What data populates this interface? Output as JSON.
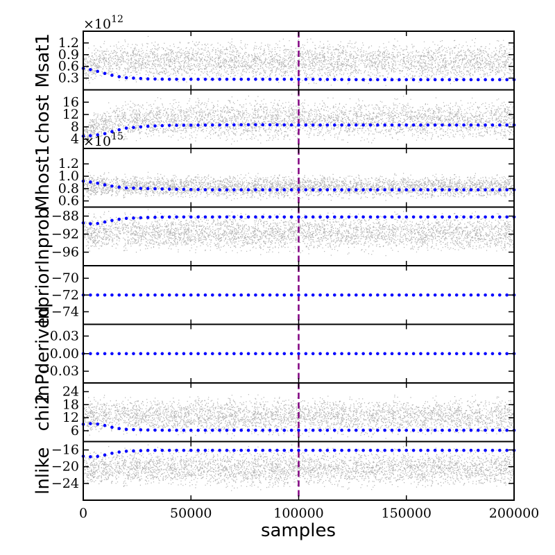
{
  "chart_data": {
    "type": "trace",
    "xlabel": "samples",
    "xlim": [
      0,
      200000
    ],
    "xticks": [
      0,
      50000,
      100000,
      150000,
      200000
    ],
    "xtick_labels": [
      "0",
      "50000",
      "100000",
      "150000",
      "200000"
    ],
    "burn_in_line": {
      "x": 100000,
      "color": "#800080",
      "style": "dashed"
    },
    "sample_color": "#b0b0b0",
    "mean_marker_color": "#0000ff",
    "panels": [
      {
        "ylabel": "Msat1",
        "multiplier_base": "×10",
        "multiplier_exp": "12",
        "ylim": [
          0,
          1.5
        ],
        "yticks": [
          0.3,
          0.6,
          0.9,
          1.2
        ],
        "ytick_labels": [
          "0.3",
          "0.6",
          "0.9",
          "1.2"
        ],
        "scatter_band": {
          "lo": [
            0.1,
            0.1,
            0.08,
            0.08,
            0.08
          ],
          "hi": [
            1.05,
            1.3,
            1.4,
            1.4,
            1.4
          ]
        },
        "mean_x": [
          0,
          5000,
          10000,
          15000,
          20000,
          30000,
          40000,
          60000,
          80000,
          100000,
          130000,
          160000,
          200000
        ],
        "mean_y": [
          0.55,
          0.5,
          0.42,
          0.35,
          0.31,
          0.28,
          0.27,
          0.27,
          0.27,
          0.27,
          0.26,
          0.26,
          0.26
        ]
      },
      {
        "ylabel": "chost",
        "ylim": [
          1,
          20
        ],
        "yticks": [
          4,
          8,
          12,
          16
        ],
        "ytick_labels": [
          "4",
          "8",
          "12",
          "16"
        ],
        "scatter_band": {
          "lo": [
            2,
            2,
            2,
            2,
            2
          ],
          "hi": [
            9,
            15,
            18,
            19,
            19
          ]
        },
        "mean_x": [
          0,
          5000,
          10000,
          15000,
          20000,
          30000,
          40000,
          60000,
          80000,
          100000,
          130000,
          160000,
          200000
        ],
        "mean_y": [
          5,
          5.2,
          5.8,
          6.8,
          7.6,
          8.2,
          8.5,
          8.6,
          8.7,
          8.6,
          8.6,
          8.6,
          8.6
        ]
      },
      {
        "ylabel": "Mhost1",
        "multiplier_base": "×10",
        "multiplier_exp": "15",
        "ylim": [
          0.5,
          1.45
        ],
        "yticks": [
          0.6,
          0.8,
          1.0,
          1.2
        ],
        "ytick_labels": [
          "0.6",
          "0.8",
          "1.0",
          "1.2"
        ],
        "scatter_band": {
          "lo": [
            0.6,
            0.6,
            0.6,
            0.6,
            0.6
          ],
          "hi": [
            1.1,
            1.1,
            1.08,
            1.08,
            1.08
          ]
        },
        "mean_x": [
          0,
          5000,
          10000,
          15000,
          20000,
          30000,
          40000,
          60000,
          80000,
          100000,
          130000,
          160000,
          200000
        ],
        "mean_y": [
          0.92,
          0.9,
          0.86,
          0.83,
          0.81,
          0.8,
          0.79,
          0.78,
          0.78,
          0.78,
          0.78,
          0.78,
          0.78
        ]
      },
      {
        "ylabel": "lnprob",
        "ylim": [
          -99,
          -86
        ],
        "yticks": [
          -96,
          -92,
          -88
        ],
        "ytick_labels": [
          "−96",
          "−92",
          "−88"
        ],
        "scatter_band": {
          "lo": [
            -96,
            -97,
            -97,
            -97,
            -97
          ],
          "hi": [
            -87,
            -86.3,
            -86.3,
            -86.3,
            -86.3
          ]
        },
        "mean_x": [
          0,
          5000,
          10000,
          15000,
          20000,
          30000,
          40000,
          60000,
          80000,
          100000,
          130000,
          160000,
          200000
        ],
        "mean_y": [
          -89.5,
          -89.8,
          -89.3,
          -88.8,
          -88.5,
          -88.3,
          -88.2,
          -88.2,
          -88.2,
          -88.2,
          -88.2,
          -88.2,
          -88.2
        ]
      },
      {
        "ylabel": "lnprior",
        "ylim": [
          -75.5,
          -68.5
        ],
        "yticks": [
          -74,
          -72,
          -70
        ],
        "ytick_labels": [
          "−74",
          "−72",
          "−70"
        ],
        "scatter_band": null,
        "mean_x": [
          0,
          200000
        ],
        "mean_y": [
          -72,
          -72
        ]
      },
      {
        "ylabel": "lnPderived",
        "ylim": [
          -0.05,
          0.05
        ],
        "yticks": [
          -0.03,
          0.0,
          0.03
        ],
        "ytick_labels": [
          "−0.03",
          "0.00",
          "0.03"
        ],
        "scatter_band": null,
        "mean_x": [
          0,
          200000
        ],
        "mean_y": [
          0,
          0
        ]
      },
      {
        "ylabel": "chi2",
        "ylim": [
          1,
          28
        ],
        "yticks": [
          6,
          12,
          18,
          24
        ],
        "ytick_labels": [
          "6",
          "12",
          "18",
          "24"
        ],
        "scatter_band": {
          "lo": [
            3,
            2,
            2,
            2,
            2
          ],
          "hi": [
            22,
            24,
            24,
            24,
            24
          ]
        },
        "mean_x": [
          0,
          5000,
          10000,
          15000,
          20000,
          30000,
          40000,
          60000,
          80000,
          100000,
          130000,
          160000,
          200000
        ],
        "mean_y": [
          9,
          9.4,
          8.4,
          7.2,
          6.6,
          6.3,
          6.2,
          6.2,
          6.2,
          6.2,
          6.2,
          6.2,
          6.2
        ]
      },
      {
        "ylabel": "lnlike",
        "ylim": [
          -28,
          -14
        ],
        "yticks": [
          -24,
          -20,
          -16
        ],
        "ytick_labels": [
          "−24",
          "−20",
          "−16"
        ],
        "scatter_band": {
          "lo": [
            -25,
            -26,
            -26,
            -26,
            -26
          ],
          "hi": [
            -15.5,
            -14.5,
            -14.5,
            -14.5,
            -14.5
          ]
        },
        "mean_x": [
          0,
          5000,
          10000,
          15000,
          20000,
          30000,
          40000,
          60000,
          80000,
          100000,
          130000,
          160000,
          200000
        ],
        "mean_y": [
          -17.5,
          -17.7,
          -17.2,
          -16.6,
          -16.3,
          -16.1,
          -16.1,
          -16.1,
          -16.1,
          -16.1,
          -16.1,
          -16.1,
          -16.1
        ]
      }
    ]
  }
}
